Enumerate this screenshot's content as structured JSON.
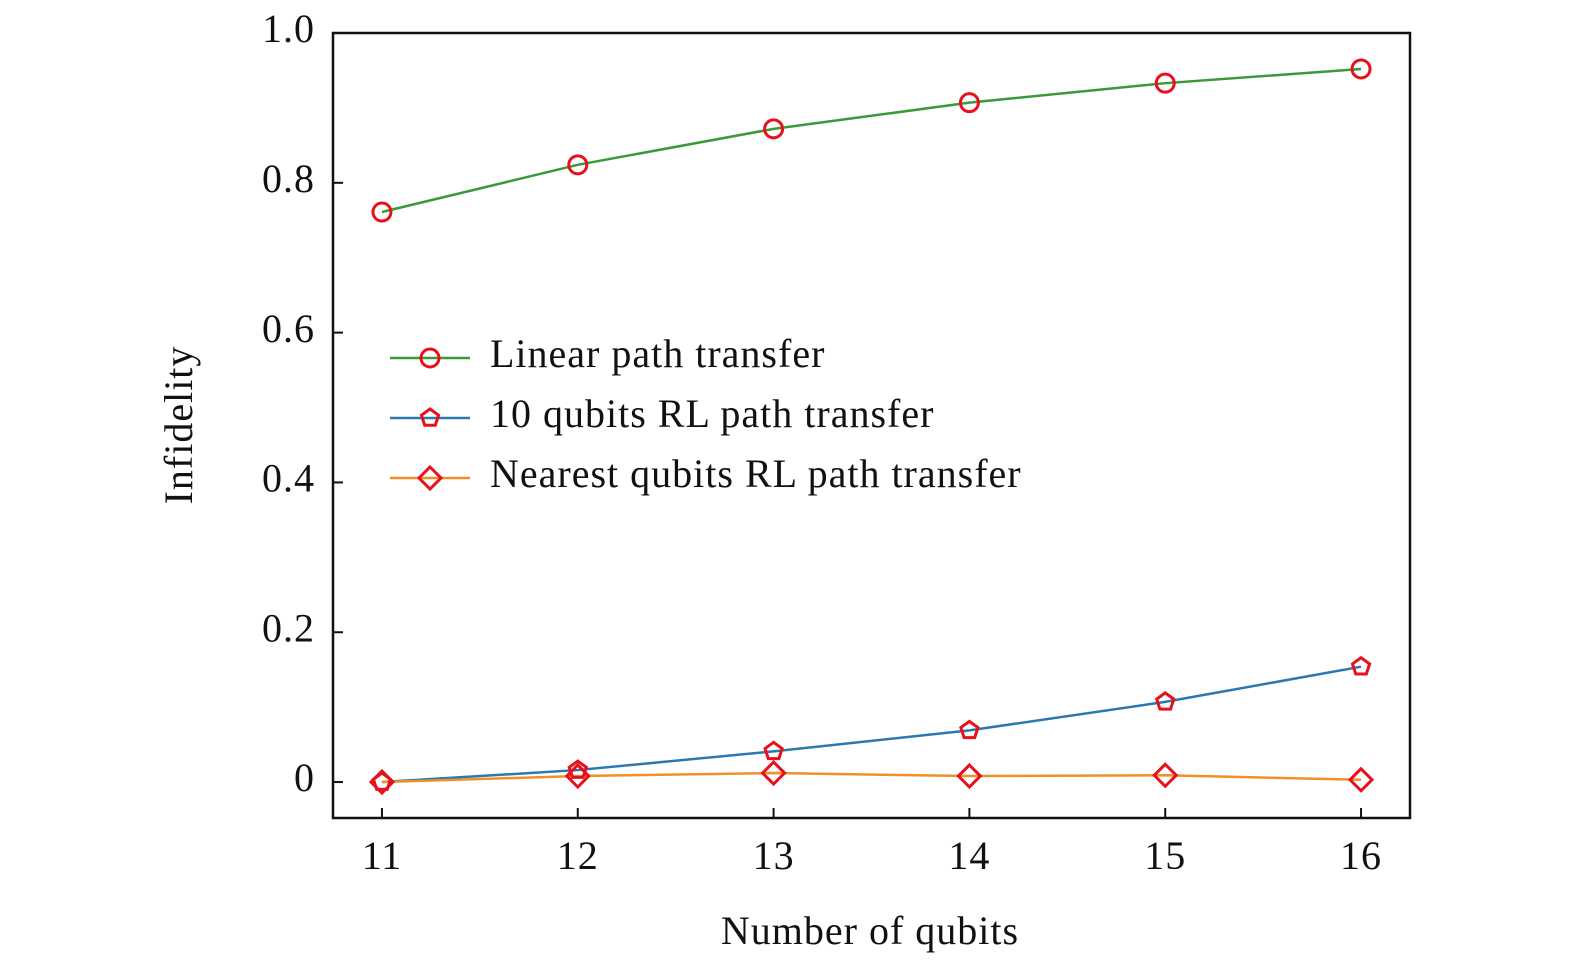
{
  "chart_data": {
    "type": "line",
    "x_label": "Number of qubits",
    "y_label": "Infidelity",
    "x": [
      11,
      12,
      13,
      14,
      15,
      16
    ],
    "series": [
      {
        "name": "Linear path transfer",
        "color": "#3a9a3a",
        "marker": "circle",
        "marker_color": "#e8101a",
        "values": [
          0.761,
          0.824,
          0.872,
          0.907,
          0.933,
          0.952
        ]
      },
      {
        "name": "10 qubits RL path transfer",
        "color": "#2a78b0",
        "marker": "pentagon",
        "marker_color": "#e8101a",
        "values": [
          0,
          0.016,
          0.041,
          0.069,
          0.107,
          0.154
        ]
      },
      {
        "name": "Nearest qubits RL path transfer",
        "color": "#f0902a",
        "marker": "diamond",
        "marker_color": "#e8101a",
        "values": [
          0,
          0.008,
          0.012,
          0.008,
          0.009,
          0.003
        ]
      }
    ],
    "xlim": [
      10.75,
      16.25
    ],
    "ylim": [
      -0.048,
      1.0
    ],
    "xticks": [
      11,
      12,
      13,
      14,
      15,
      16
    ],
    "yticks": [
      0,
      0.2,
      0.4,
      0.6,
      0.8,
      {
        "value": 1,
        "label": "1.0"
      }
    ],
    "legend": "center-left",
    "grid": false
  }
}
